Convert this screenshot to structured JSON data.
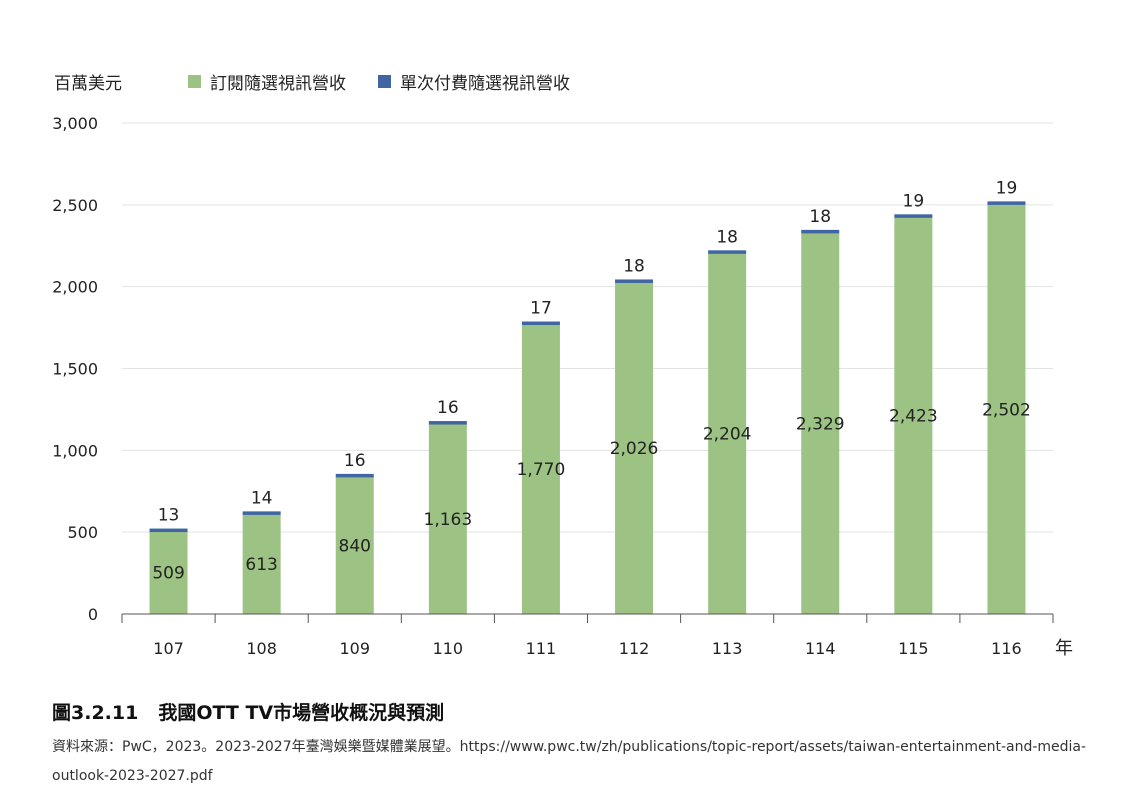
{
  "chart_data": {
    "type": "bar",
    "stacked": true,
    "unit_label": "百萬美元",
    "x_unit_label": "年",
    "categories": [
      "107",
      "108",
      "109",
      "110",
      "111",
      "112",
      "113",
      "114",
      "115",
      "116"
    ],
    "series": [
      {
        "name": "訂閱隨選視訊營收",
        "color": "#9dc384",
        "values": [
          509,
          613,
          840,
          1163,
          1770,
          2026,
          2204,
          2329,
          2423,
          2502
        ],
        "labels": [
          "509",
          "613",
          "840",
          "1,163",
          "1,770",
          "2,026",
          "2,204",
          "2,329",
          "2,423",
          "2,502"
        ]
      },
      {
        "name": "單次付費隨選視訊營收",
        "color": "#3f66a3",
        "values": [
          13,
          14,
          16,
          16,
          17,
          18,
          18,
          18,
          19,
          19
        ],
        "labels": [
          "13",
          "14",
          "16",
          "16",
          "17",
          "18",
          "18",
          "18",
          "19",
          "19"
        ]
      }
    ],
    "ylim": [
      0,
      3000
    ],
    "yticks": [
      0,
      500,
      1000,
      1500,
      2000,
      2500,
      3000
    ],
    "ytick_labels": [
      "0",
      "500",
      "1,000",
      "1,500",
      "2,000",
      "2,500",
      "3,000"
    ],
    "legend_position": "top",
    "grid": true
  },
  "caption": {
    "number": "圖3.2.11",
    "title": "我國OTT TV市場營收概況與預測"
  },
  "source": "資料來源：PwC，2023。2023-2027年臺灣娛樂暨媒體業展望。https://www.pwc.tw/zh/publications/topic-report/assets/taiwan-entertainment-and-media-outlook-2023-2027.pdf"
}
